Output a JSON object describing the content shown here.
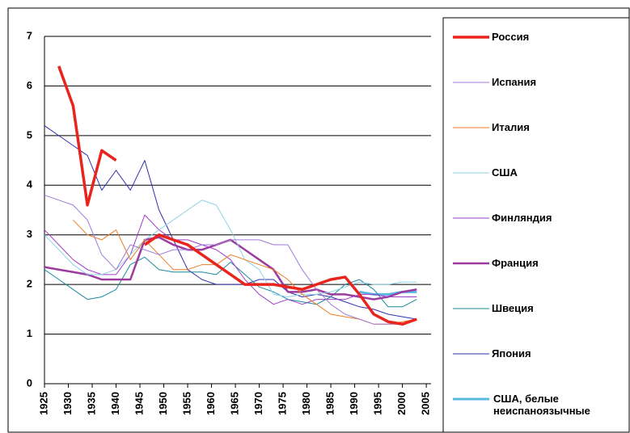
{
  "chart_data": {
    "type": "line",
    "x": [
      1925,
      1928,
      1931,
      1934,
      1937,
      1940,
      1943,
      1946,
      1949,
      1952,
      1955,
      1958,
      1961,
      1964,
      1967,
      1970,
      1973,
      1976,
      1979,
      1982,
      1985,
      1988,
      1991,
      1994,
      1997,
      2000,
      2003
    ],
    "xlim": [
      1925,
      2006
    ],
    "xticks": [
      1925,
      1930,
      1935,
      1940,
      1945,
      1950,
      1955,
      1960,
      1965,
      1970,
      1975,
      1980,
      1985,
      1990,
      1995,
      2000,
      2005
    ],
    "ylim": [
      0,
      7
    ],
    "yticks": [
      0,
      1,
      2,
      3,
      4,
      5,
      6,
      7
    ],
    "grid": true,
    "legend": "right",
    "series": [
      {
        "name": "Россия",
        "color": "#e8241c",
        "width": 3.5,
        "values": [
          null,
          6.4,
          5.6,
          3.6,
          4.7,
          4.5,
          null,
          2.8,
          3.0,
          2.9,
          2.8,
          2.6,
          2.4,
          2.2,
          2.0,
          2.0,
          2.0,
          1.95,
          1.9,
          2.0,
          2.1,
          2.15,
          1.8,
          1.4,
          1.25,
          1.2,
          1.3
        ]
      },
      {
        "name": "Испания",
        "color": "#a07ad6",
        "width": 1,
        "values": [
          3.8,
          3.7,
          3.6,
          3.3,
          2.6,
          2.3,
          2.8,
          2.7,
          2.6,
          2.7,
          2.7,
          2.8,
          2.8,
          2.9,
          2.9,
          2.9,
          2.8,
          2.8,
          2.3,
          1.9,
          1.6,
          1.4,
          1.3,
          1.2,
          1.2,
          1.2,
          1.3
        ]
      },
      {
        "name": "Италия",
        "color": "#f07a20",
        "width": 1,
        "values": [
          null,
          null,
          3.3,
          3.0,
          2.9,
          3.1,
          2.5,
          2.9,
          2.6,
          2.3,
          2.3,
          2.4,
          2.4,
          2.6,
          2.5,
          2.4,
          2.3,
          2.1,
          1.8,
          1.6,
          1.4,
          1.35,
          1.3,
          1.2,
          1.2,
          1.25,
          1.3
        ]
      },
      {
        "name": "США",
        "color": "#8fd3e8",
        "width": 1,
        "values": [
          3.0,
          2.7,
          2.4,
          2.2,
          2.2,
          2.3,
          2.6,
          2.9,
          3.1,
          3.3,
          3.5,
          3.7,
          3.6,
          3.1,
          2.5,
          2.3,
          1.8,
          1.75,
          1.8,
          1.8,
          1.85,
          1.95,
          2.05,
          2.0,
          2.0,
          2.05,
          2.05
        ]
      },
      {
        "name": "Финляндия",
        "color": "#a03cc8",
        "width": 1,
        "values": [
          3.1,
          2.8,
          2.5,
          2.3,
          2.2,
          2.2,
          2.6,
          3.4,
          3.1,
          2.9,
          2.9,
          2.8,
          2.7,
          2.5,
          2.1,
          1.8,
          1.6,
          1.7,
          1.6,
          1.7,
          1.7,
          1.7,
          1.8,
          1.8,
          1.75,
          1.75,
          1.75
        ]
      },
      {
        "name": "Франция",
        "color": "#9d3a9d",
        "width": 2.5,
        "values": [
          2.35,
          2.3,
          2.25,
          2.2,
          2.1,
          2.1,
          2.1,
          2.9,
          2.95,
          2.8,
          2.7,
          2.7,
          2.8,
          2.9,
          2.7,
          2.5,
          2.3,
          1.85,
          1.85,
          1.9,
          1.8,
          1.8,
          1.75,
          1.7,
          1.75,
          1.85,
          1.9
        ]
      },
      {
        "name": "Швеция",
        "color": "#1a8a9a",
        "width": 1,
        "values": [
          2.3,
          2.1,
          1.9,
          1.7,
          1.75,
          1.9,
          2.4,
          2.55,
          2.3,
          2.25,
          2.25,
          2.25,
          2.2,
          2.45,
          2.2,
          1.95,
          1.85,
          1.7,
          1.65,
          1.6,
          1.75,
          2.0,
          2.1,
          1.9,
          1.55,
          1.55,
          1.7
        ]
      },
      {
        "name": "Япония",
        "color": "#3030b0",
        "width": 1,
        "values": [
          5.2,
          5.0,
          4.8,
          4.6,
          3.9,
          4.3,
          3.9,
          4.5,
          3.5,
          2.9,
          2.3,
          2.1,
          2.0,
          2.0,
          2.0,
          2.1,
          2.1,
          1.85,
          1.75,
          1.8,
          1.75,
          1.65,
          1.55,
          1.5,
          1.4,
          1.35,
          1.3
        ]
      },
      {
        "name": "США, белые неиспаноязычные",
        "color": "#5ab8e0",
        "width": 3,
        "values": [
          null,
          null,
          null,
          null,
          null,
          null,
          null,
          null,
          null,
          null,
          null,
          null,
          null,
          null,
          null,
          null,
          null,
          null,
          null,
          null,
          null,
          null,
          1.85,
          1.8,
          1.8,
          1.85,
          1.85
        ]
      }
    ]
  }
}
